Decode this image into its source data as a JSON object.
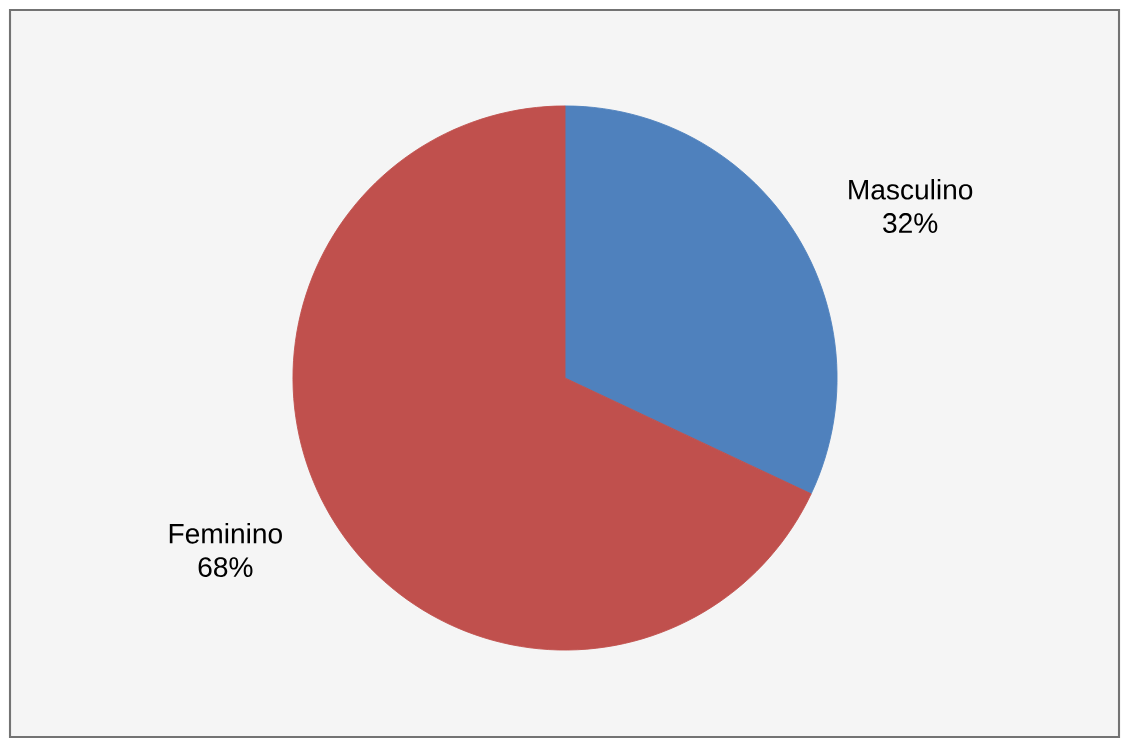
{
  "chart_data": {
    "type": "pie",
    "categories": [
      "Masculino",
      "Feminino"
    ],
    "values": [
      32,
      68
    ],
    "colors": [
      "#4f81bd",
      "#c0504d"
    ],
    "value_labels": [
      "32%",
      "68%"
    ]
  }
}
